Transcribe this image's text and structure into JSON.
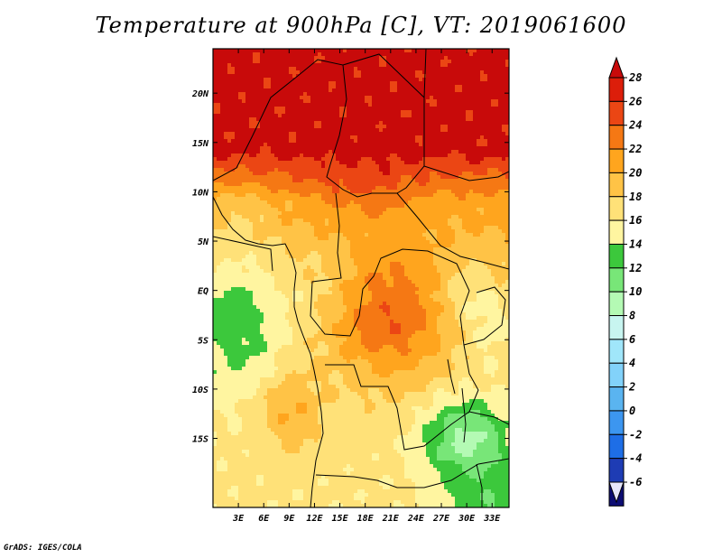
{
  "title": "Temperature at 900hPa [C], VT: 2019061600",
  "credit": "GrADS: IGES/COLA",
  "chart_data": {
    "type": "heatmap",
    "title": "Temperature at 900hPa [C], VT: 2019061600",
    "variable": "Temperature at 900hPa",
    "units": "C",
    "valid_time": "2019061600",
    "x_range": [
      0,
      35
    ],
    "y_range": [
      -22,
      24.5
    ],
    "lon_ticks": [
      {
        "value": 3,
        "label": "3E"
      },
      {
        "value": 6,
        "label": "6E"
      },
      {
        "value": 9,
        "label": "9E"
      },
      {
        "value": 12,
        "label": "12E"
      },
      {
        "value": 15,
        "label": "15E"
      },
      {
        "value": 18,
        "label": "18E"
      },
      {
        "value": 21,
        "label": "21E"
      },
      {
        "value": 24,
        "label": "24E"
      },
      {
        "value": 27,
        "label": "27E"
      },
      {
        "value": 30,
        "label": "30E"
      },
      {
        "value": 33,
        "label": "33E"
      }
    ],
    "lat_ticks": [
      {
        "value": 20,
        "label": "20N"
      },
      {
        "value": 15,
        "label": "15N"
      },
      {
        "value": 10,
        "label": "10N"
      },
      {
        "value": 5,
        "label": "5N"
      },
      {
        "value": 0,
        "label": "EQ"
      },
      {
        "value": -5,
        "label": "5S"
      },
      {
        "value": -10,
        "label": "10S"
      },
      {
        "value": -15,
        "label": "15S"
      }
    ],
    "colorbar": {
      "levels": [
        -6,
        -4,
        -2,
        0,
        2,
        4,
        6,
        8,
        10,
        12,
        14,
        16,
        18,
        20,
        22,
        24,
        26,
        28
      ],
      "colors": [
        "#0d0d73",
        "#1e3cb4",
        "#1e6ee6",
        "#3c96f0",
        "#5ab4f0",
        "#82d2fa",
        "#a0e6fa",
        "#c8f5f0",
        "#b4fab4",
        "#78e678",
        "#3cc83c",
        "#fff5a0",
        "#ffe178",
        "#ffc346",
        "#ffa51e",
        "#f57814",
        "#eb4614",
        "#dc1e0a",
        "#c80a0a"
      ],
      "under_color": "#e6e6fa"
    }
  }
}
